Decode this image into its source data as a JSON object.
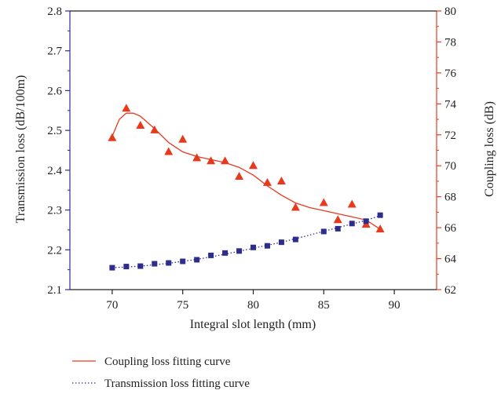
{
  "chart_data": {
    "type": "scatter",
    "xlabel": "Integral slot length (mm)",
    "ylabel_left": "Transmission loss (dB/100m)",
    "ylabel_right": "Coupling loss (dB)",
    "xlim": [
      67,
      93
    ],
    "ylim_left": [
      2.1,
      2.8
    ],
    "ylim_right": [
      62,
      80
    ],
    "x_ticks": [
      "70",
      "75",
      "80",
      "85",
      "90"
    ],
    "y_ticks_left": [
      "2.1",
      "2.2",
      "2.3",
      "2.4",
      "2.5",
      "2.6",
      "2.7",
      "2.8"
    ],
    "y_ticks_right": [
      "62",
      "64",
      "66",
      "68",
      "70",
      "72",
      "74",
      "76",
      "78",
      "80"
    ],
    "grid": false,
    "legend_position": "bottom",
    "series": [
      {
        "axis": "right",
        "marker": "triangle",
        "color": "#e8391d",
        "x": [
          70,
          71,
          72,
          73,
          74,
          75,
          76,
          77,
          78,
          79,
          80,
          81,
          82,
          83,
          85,
          86,
          87,
          88,
          89
        ],
        "y": [
          71.8,
          73.7,
          72.6,
          72.3,
          70.9,
          71.7,
          70.5,
          70.3,
          70.3,
          69.3,
          70.0,
          68.9,
          69.0,
          67.3,
          67.6,
          66.5,
          67.5,
          66.2,
          65.9
        ]
      },
      {
        "axis": "left",
        "marker": "square",
        "color": "#2d2d8e",
        "x": [
          70,
          71,
          72,
          73,
          74,
          75,
          76,
          77,
          78,
          79,
          80,
          81,
          82,
          83,
          85,
          86,
          87,
          88,
          89
        ],
        "y": [
          2.155,
          2.158,
          2.159,
          2.165,
          2.167,
          2.171,
          2.175,
          2.186,
          2.192,
          2.197,
          2.206,
          2.21,
          2.219,
          2.226,
          2.246,
          2.253,
          2.266,
          2.272,
          2.287
        ]
      },
      {
        "name": "Coupling loss fitting curve",
        "axis": "right",
        "line": "solid",
        "color": "#e8391d",
        "x": [
          70,
          70.5,
          71,
          71.5,
          72,
          73,
          74,
          75,
          76,
          77,
          78,
          79,
          80,
          81,
          82,
          83,
          84,
          85,
          86,
          87,
          88,
          89
        ],
        "y": [
          71.9,
          73.0,
          73.4,
          73.4,
          73.2,
          72.4,
          71.5,
          70.9,
          70.6,
          70.4,
          70.2,
          69.9,
          69.4,
          68.7,
          68.1,
          67.6,
          67.3,
          67.1,
          66.9,
          66.7,
          66.5,
          65.9
        ]
      },
      {
        "name": "Transmission loss fitting curve",
        "axis": "left",
        "line": "dotted",
        "color": "#2d2d8e",
        "x": [
          70,
          72,
          74,
          76,
          78,
          80,
          82,
          84,
          86,
          88,
          89
        ],
        "y": [
          2.155,
          2.159,
          2.166,
          2.176,
          2.189,
          2.204,
          2.219,
          2.237,
          2.256,
          2.274,
          2.286
        ]
      }
    ]
  }
}
